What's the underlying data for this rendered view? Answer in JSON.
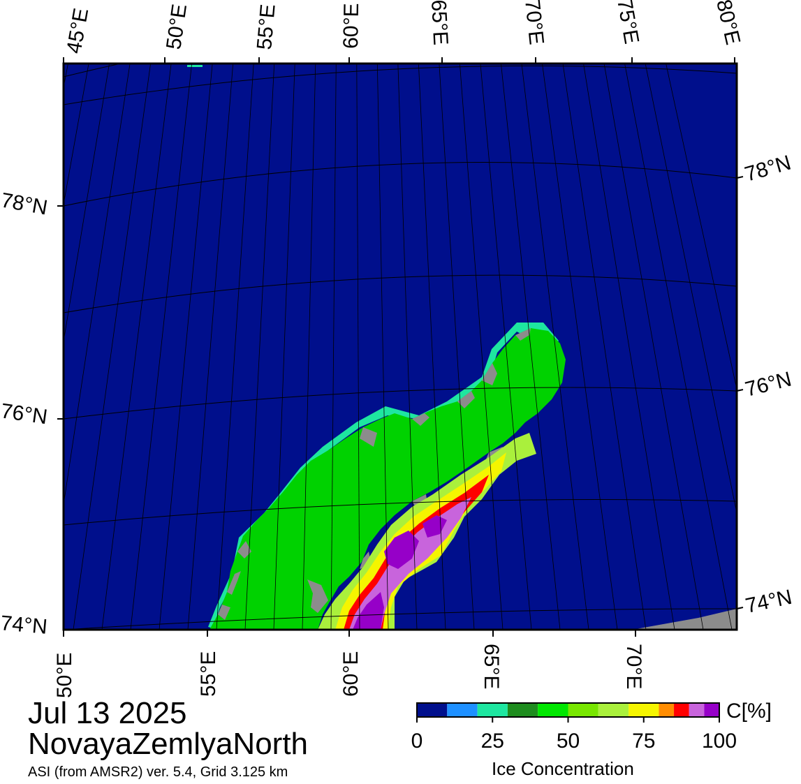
{
  "map": {
    "title_date": "Jul 13 2025",
    "region": "NovayaZemlyaNorth",
    "product": "ASI (from AMSR2) ver. 5.4,  Grid 3.125 km",
    "colors": {
      "open_water": "#000f8c",
      "land": "#00d200",
      "no_data": "#8c8c8c",
      "border": "#000000",
      "gridline": "#000000"
    },
    "lon_labels_top": [
      "45°E",
      "50°E",
      "55°E",
      "60°E",
      "65°E",
      "70°E",
      "75°E",
      "80°E"
    ],
    "lon_labels_bottom": [
      "50°E",
      "55°E",
      "60°E",
      "65°E",
      "70°E"
    ],
    "lat_labels_left": [
      "78°N",
      "76°N",
      "74°N"
    ],
    "lat_labels_right": [
      "78°N",
      "76°N",
      "74°N"
    ]
  },
  "colorbar": {
    "unit": "C[%]",
    "title": "Ice Concentration",
    "tick_labels": [
      "0",
      "25",
      "50",
      "75",
      "100"
    ],
    "tick_values": [
      0,
      25,
      50,
      75,
      100
    ],
    "bins": [
      {
        "from": 0,
        "to": 10,
        "color": "#000f8c"
      },
      {
        "from": 10,
        "to": 20,
        "color": "#1e90ff"
      },
      {
        "from": 20,
        "to": 30,
        "color": "#1ee6a0"
      },
      {
        "from": 30,
        "to": 40,
        "color": "#1e8c1e"
      },
      {
        "from": 40,
        "to": 50,
        "color": "#00e600"
      },
      {
        "from": 50,
        "to": 60,
        "color": "#78e600"
      },
      {
        "from": 60,
        "to": 70,
        "color": "#aaf03c"
      },
      {
        "from": 70,
        "to": 80,
        "color": "#f5f500"
      },
      {
        "from": 80,
        "to": 85,
        "color": "#ff8c00"
      },
      {
        "from": 85,
        "to": 90,
        "color": "#ff0000"
      },
      {
        "from": 90,
        "to": 95,
        "color": "#c864dc"
      },
      {
        "from": 95,
        "to": 100,
        "color": "#9600c8"
      }
    ]
  }
}
